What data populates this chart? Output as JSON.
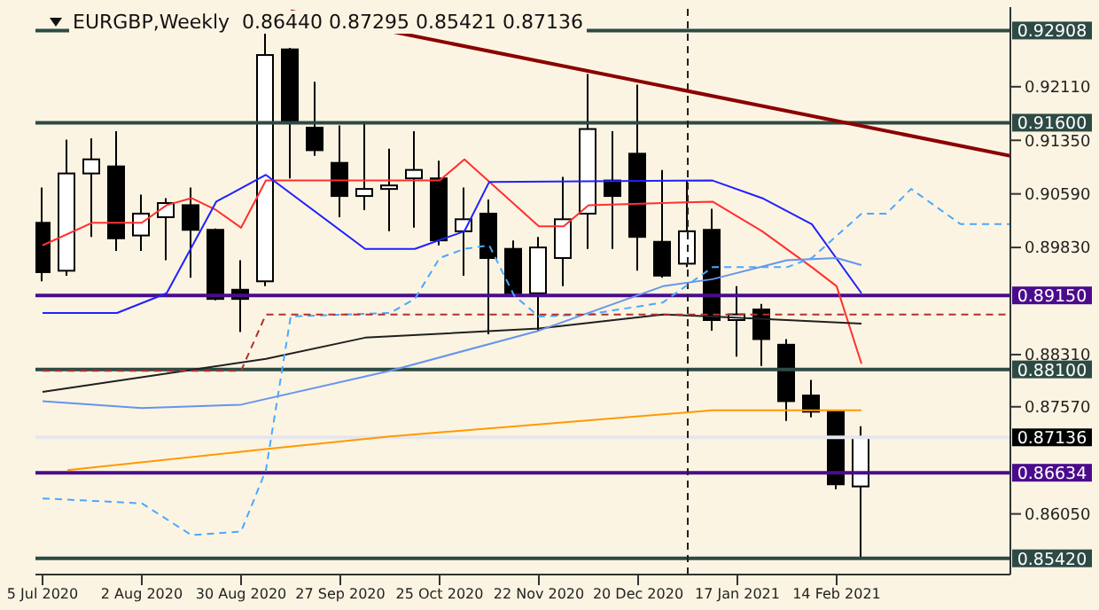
{
  "chart_data": {
    "type": "candlestick",
    "title": "EURGBP,Weekly  0.86440 0.87295 0.85421 0.87136",
    "x": [
      "2020-07-05",
      "2020-07-12",
      "2020-07-19",
      "2020-07-26",
      "2020-08-02",
      "2020-08-09",
      "2020-08-16",
      "2020-08-23",
      "2020-08-30",
      "2020-09-06",
      "2020-09-13",
      "2020-09-20",
      "2020-09-27",
      "2020-10-04",
      "2020-10-11",
      "2020-10-18",
      "2020-10-25",
      "2020-11-01",
      "2020-11-08",
      "2020-11-15",
      "2020-11-22",
      "2020-11-29",
      "2020-12-06",
      "2020-12-13",
      "2020-12-20",
      "2020-12-27",
      "2021-01-03",
      "2021-01-10",
      "2021-01-17",
      "2021-01-24",
      "2021-01-31",
      "2021-02-07",
      "2021-02-14",
      "2021-02-21"
    ],
    "ohlc": [
      [
        0.9018,
        0.9068,
        0.8935,
        0.8948
      ],
      [
        0.895,
        0.9136,
        0.8943,
        0.9088
      ],
      [
        0.9088,
        0.9138,
        0.8998,
        0.9108
      ],
      [
        0.9098,
        0.9148,
        0.8978,
        0.8996
      ],
      [
        0.9,
        0.9058,
        0.8978,
        0.9031
      ],
      [
        0.9026,
        0.9053,
        0.8965,
        0.9046
      ],
      [
        0.9043,
        0.9068,
        0.894,
        0.9008
      ],
      [
        0.9008,
        0.901,
        0.8908,
        0.891
      ],
      [
        0.8923,
        0.8965,
        0.8863,
        0.891
      ],
      [
        0.8935,
        0.9291,
        0.8928,
        0.9256
      ],
      [
        0.9264,
        0.9266,
        0.9081,
        0.9163
      ],
      [
        0.9153,
        0.9218,
        0.9113,
        0.9121
      ],
      [
        0.9103,
        0.9156,
        0.9026,
        0.9056
      ],
      [
        0.9056,
        0.9161,
        0.9036,
        0.9066
      ],
      [
        0.9066,
        0.9123,
        0.9006,
        0.9071
      ],
      [
        0.9081,
        0.9148,
        0.9011,
        0.9093
      ],
      [
        0.9081,
        0.9106,
        0.8986,
        0.8993
      ],
      [
        0.9006,
        0.9068,
        0.8943,
        0.9023
      ],
      [
        0.9031,
        0.9051,
        0.886,
        0.8968
      ],
      [
        0.8981,
        0.8993,
        0.8915,
        0.8918
      ],
      [
        0.8918,
        0.8998,
        0.8865,
        0.8983
      ],
      [
        0.8968,
        0.9083,
        0.8928,
        0.9023
      ],
      [
        0.9031,
        0.9229,
        0.8981,
        0.9151
      ],
      [
        0.9078,
        0.9148,
        0.8981,
        0.9056
      ],
      [
        0.9116,
        0.9214,
        0.895,
        0.8998
      ],
      [
        0.8991,
        0.9093,
        0.894,
        0.8943
      ],
      [
        0.896,
        0.9078,
        0.8955,
        0.9006
      ],
      [
        0.9008,
        0.9038,
        0.8865,
        0.888
      ],
      [
        0.888,
        0.8928,
        0.8828,
        0.8888
      ],
      [
        0.8895,
        0.8903,
        0.8815,
        0.8853
      ],
      [
        0.8845,
        0.8853,
        0.8737,
        0.8765
      ],
      [
        0.8773,
        0.8795,
        0.8742,
        0.875
      ],
      [
        0.875,
        0.875,
        0.864,
        0.8647
      ],
      [
        0.8644,
        0.87295,
        0.85421,
        0.87136
      ]
    ],
    "series": [
      {
        "type": "line",
        "color": "#ff3030",
        "x": [
          "2020-07-05",
          "2020-07-19",
          "2020-08-02",
          "2020-08-09",
          "2020-08-16",
          "2020-08-23",
          "2020-08-30",
          "2020-09-06",
          "2020-10-25",
          "2020-11-01",
          "2020-11-22",
          "2020-11-29",
          "2020-12-06",
          "2021-01-10",
          "2021-01-24",
          "2021-02-07",
          "2021-02-14",
          "2021-02-21"
        ],
        "values": [
          0.8986,
          0.9018,
          0.9018,
          0.9043,
          0.9053,
          0.9036,
          0.9011,
          0.9078,
          0.9078,
          0.9108,
          0.9013,
          0.9013,
          0.9043,
          0.9048,
          0.9006,
          0.8955,
          0.8928,
          0.8818
        ]
      },
      {
        "type": "line",
        "color": "#2020ff",
        "x": [
          "2020-07-05",
          "2020-07-26",
          "2020-08-09",
          "2020-08-23",
          "2020-09-06",
          "2020-10-04",
          "2020-10-18",
          "2020-11-01",
          "2020-11-08",
          "2021-01-10",
          "2021-01-24",
          "2021-02-07",
          "2021-02-21"
        ],
        "values": [
          0.889,
          0.889,
          0.8918,
          0.9048,
          0.9086,
          0.8981,
          0.8981,
          0.9006,
          0.9076,
          0.9078,
          0.9053,
          0.9016,
          0.8918
        ]
      },
      {
        "type": "line",
        "color": "#202020",
        "x": [
          "2020-07-05",
          "2020-09-06",
          "2020-10-04",
          "2020-11-22",
          "2020-12-27",
          "2021-01-10",
          "2021-02-21"
        ],
        "values": [
          0.8778,
          0.8825,
          0.8855,
          0.8868,
          0.8888,
          0.8885,
          0.8875
        ]
      },
      {
        "type": "line",
        "color": "#6495ed",
        "x": [
          "2020-07-05",
          "2020-08-02",
          "2020-08-30",
          "2020-10-11",
          "2020-11-22",
          "2020-12-27",
          "2021-01-10",
          "2021-01-31",
          "2021-02-14",
          "2021-02-21"
        ],
        "values": [
          0.8765,
          0.8755,
          0.876,
          0.8808,
          0.8865,
          0.8928,
          0.8938,
          0.8965,
          0.8968,
          0.8958
        ]
      },
      {
        "type": "line",
        "color": "#ff9900",
        "x": [
          "2020-07-12",
          "2020-09-06",
          "2020-10-11",
          "2021-01-10",
          "2021-02-21"
        ],
        "values": [
          0.8667,
          0.8697,
          0.8715,
          0.8752,
          0.8752
        ]
      },
      {
        "type": "line",
        "color": "#4aa8ff",
        "line_style": "dashed",
        "x": [
          "2020-07-05",
          "2020-08-02",
          "2020-08-16",
          "2020-08-30",
          "2020-09-06",
          "2020-09-13",
          "2020-10-11",
          "2020-10-18",
          "2020-10-25",
          "2020-11-01",
          "2020-11-08",
          "2020-11-15",
          "2020-11-22",
          "2020-12-06",
          "2020-12-27",
          "2021-01-10",
          "2021-01-31",
          "2021-02-07",
          "2021-02-21",
          "2021-02-28",
          "2021-03-07",
          "2021-03-14",
          "2021-03-21",
          "2021-04-04"
        ],
        "values": [
          0.8627,
          0.862,
          0.8575,
          0.858,
          0.8667,
          0.8885,
          0.889,
          0.891,
          0.8968,
          0.8981,
          0.8986,
          0.8915,
          0.8885,
          0.8888,
          0.8905,
          0.8955,
          0.8955,
          0.8968,
          0.9031,
          0.9031,
          0.9066,
          0.9041,
          0.9016,
          0.9016
        ]
      },
      {
        "type": "line",
        "color": "#b03030",
        "line_style": "dashed",
        "x": [
          "2020-07-05",
          "2020-08-30",
          "2020-09-06",
          "2021-04-04"
        ],
        "values": [
          0.8808,
          0.8808,
          0.8888,
          0.8888
        ]
      },
      {
        "type": "line",
        "color": "#8b0000",
        "x": [
          "2020-09-13",
          "2021-04-04"
        ],
        "values": [
          0.9318,
          0.9113
        ]
      }
    ],
    "xlim": [
      "2020-07-03",
      "2021-04-04"
    ],
    "xticks": [
      {
        "value": "2020-07-05",
        "label": "5 Jul 2020"
      },
      {
        "value": "2020-08-02",
        "label": "2 Aug 2020"
      },
      {
        "value": "2020-08-30",
        "label": "30 Aug 2020"
      },
      {
        "value": "2020-09-27",
        "label": "27 Sep 2020"
      },
      {
        "value": "2020-10-25",
        "label": "25 Oct 2020"
      },
      {
        "value": "2020-11-22",
        "label": "22 Nov 2020"
      },
      {
        "value": "2020-12-20",
        "label": "20 Dec 2020"
      },
      {
        "value": "2021-01-17",
        "label": "17 Jan 2021"
      },
      {
        "value": "2021-02-14",
        "label": "14 Feb 2021"
      }
    ],
    "ylim": [
      0.8519,
      0.9324
    ],
    "yticks": [
      {
        "value": 0.9211,
        "label": "0.92110"
      },
      {
        "value": 0.9135,
        "label": "0.91350"
      },
      {
        "value": 0.9059,
        "label": "0.90590"
      },
      {
        "value": 0.8983,
        "label": "0.89830"
      },
      {
        "value": 0.8831,
        "label": "0.88310"
      },
      {
        "value": 0.8757,
        "label": "0.87570"
      },
      {
        "value": 0.8605,
        "label": "0.86050"
      }
    ],
    "ref_lines": [
      {
        "axis": "y",
        "value": 0.92908,
        "label": "0.92908",
        "color": "#2d4a44"
      },
      {
        "axis": "y",
        "value": 0.916,
        "label": "0.91600",
        "color": "#2d4a44"
      },
      {
        "axis": "y",
        "value": 0.8915,
        "label": "0.89150",
        "color": "#4b0c8c"
      },
      {
        "axis": "y",
        "value": 0.881,
        "label": "0.88100",
        "color": "#2d4a44"
      },
      {
        "axis": "y",
        "value": 0.87136,
        "label": "0.87136",
        "color": "#e6e6ec"
      },
      {
        "axis": "y",
        "value": 0.86634,
        "label": "0.86634",
        "color": "#4b0c8c"
      },
      {
        "axis": "y",
        "value": 0.8542,
        "label": "0.85420",
        "color": "#2d4a44"
      },
      {
        "axis": "x",
        "value": "2021-01-03",
        "color": "#202020",
        "line_style": "dashed"
      }
    ],
    "grid": false
  }
}
